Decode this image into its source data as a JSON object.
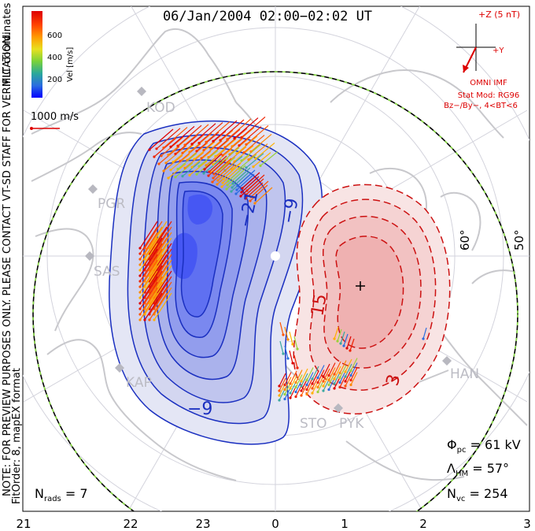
{
  "title": "06/Jan/2004 02:00−02:02 UT",
  "side_note_line1": "NOTE: FOR PREVIEW PURPOSES ONLY. PLEASE CONTACT VT-SD STAFF FOR VERIFICATION.",
  "side_note_line2": "FitOrder: 8, mapEX format",
  "mlt_coordinates": "MLT coordinates",
  "color_scale": {
    "label": "Vel [m/s]",
    "ticks": [
      "600",
      "400",
      "200"
    ],
    "colors": [
      "#0000ff",
      "#2a6de0",
      "#2aa89a",
      "#7ad23a",
      "#e8e020",
      "#ff9a00",
      "#ff4400",
      "#dd0000"
    ]
  },
  "vector_reference": {
    "label": "1000 m/s",
    "color": "#dd0000"
  },
  "imf": {
    "top_label": "+Z (5 nT)",
    "right_label": "+Y",
    "bottom_label": "OMNI IMF",
    "stat_mod": "Stat Mod: RG96",
    "condition": "Bz−/By−, 4<BT<6",
    "color": "#dd0000"
  },
  "latitude_labels": [
    "60°",
    "50°"
  ],
  "mlt_hours": [
    "21",
    "22",
    "23",
    "0",
    "1",
    "2",
    "3"
  ],
  "radars": [
    "KOD",
    "PGR",
    "SAS",
    "KAP",
    "STO",
    "PYK",
    "HAN"
  ],
  "contours": {
    "negative_labels": [
      "−21",
      "−9",
      "−9"
    ],
    "positive_labels": [
      "15",
      "3"
    ],
    "negative_color": "#1a2fc0",
    "positive_color": "#cc1111"
  },
  "stats": {
    "phi_pc_symbol": "Φ",
    "phi_pc_sub": "pc",
    "phi_pc_value": " = 61 kV",
    "lambda_hm_symbol": "Λ",
    "lambda_hm_sub": "HM",
    "lambda_hm_value": " = 57°",
    "n_vc_symbol": "N",
    "n_vc_sub": "vc",
    "n_vc_value": " = 254",
    "n_rads_symbol": "N",
    "n_rads_sub": "rads",
    "n_rads_value": " = 7"
  }
}
